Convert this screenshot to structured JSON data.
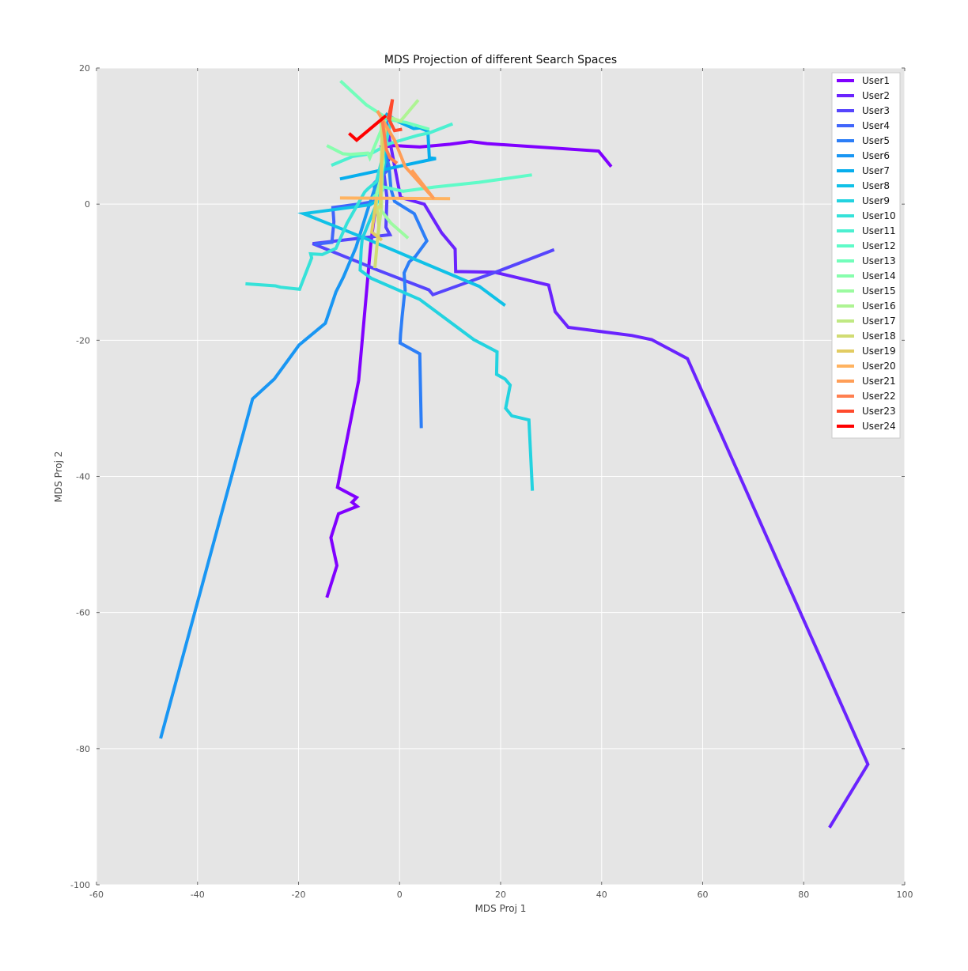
{
  "chart_data": {
    "type": "line",
    "title": "MDS Projection of different Search Spaces",
    "xlabel": "MDS Proj 1",
    "ylabel": "MDS Proj 2",
    "xlim": [
      -60,
      100
    ],
    "ylim": [
      -100,
      20
    ],
    "xticks": [
      -60,
      -40,
      -20,
      0,
      20,
      40,
      60,
      80,
      100
    ],
    "yticks": [
      20,
      0,
      -20,
      -40,
      -60,
      -80,
      -100
    ],
    "grid": true,
    "background": "#e5e5e5",
    "legend_position": "top-right",
    "series": [
      {
        "name": "User1",
        "color": "#8000ff",
        "points": [
          [
            -14.4,
            -57.8
          ],
          [
            -12.4,
            -53.1
          ],
          [
            -13.6,
            -49.0
          ],
          [
            -12.1,
            -45.5
          ],
          [
            -8.4,
            -44.4
          ],
          [
            -9.4,
            -43.8
          ],
          [
            -8.5,
            -43.1
          ],
          [
            -12.3,
            -41.6
          ],
          [
            -8.1,
            -25.9
          ],
          [
            -5.7,
            -5.9
          ],
          [
            -4.1,
            3.5
          ],
          [
            -2.0,
            6.8
          ],
          [
            -3.5,
            8.4
          ],
          [
            -1.0,
            8.6
          ],
          [
            4.0,
            8.4
          ],
          [
            10.0,
            8.8
          ],
          [
            14.0,
            9.2
          ],
          [
            17.3,
            8.9
          ],
          [
            39.4,
            7.8
          ],
          [
            41.9,
            5.5
          ]
        ]
      },
      {
        "name": "User2",
        "color": "#6a23fe",
        "points": [
          [
            -2.9,
            13.1
          ],
          [
            0.2,
            1.0
          ],
          [
            4.9,
            0.0
          ],
          [
            8.3,
            -4.2
          ],
          [
            11.0,
            -6.6
          ],
          [
            11.1,
            -9.9
          ],
          [
            18.8,
            -10.0
          ],
          [
            29.5,
            -11.9
          ],
          [
            30.8,
            -15.8
          ],
          [
            33.4,
            -18.1
          ],
          [
            46.0,
            -19.3
          ],
          [
            49.9,
            -19.9
          ],
          [
            57.0,
            -22.7
          ],
          [
            92.7,
            -82.3
          ],
          [
            85.1,
            -91.6
          ]
        ]
      },
      {
        "name": "User3",
        "color": "#5645fd",
        "points": [
          [
            -3.1,
            12.7
          ],
          [
            -3.1,
            4.6
          ],
          [
            -2.5,
            1.0
          ],
          [
            -2.7,
            -3.4
          ],
          [
            -1.9,
            -4.5
          ],
          [
            -17.2,
            -5.8
          ],
          [
            -8.2,
            -8.5
          ],
          [
            -4.3,
            -9.7
          ],
          [
            5.8,
            -12.6
          ],
          [
            6.6,
            -13.3
          ],
          [
            19.0,
            -10.0
          ],
          [
            30.6,
            -6.7
          ]
        ]
      },
      {
        "name": "User4",
        "color": "#4065fb",
        "points": [
          [
            -2.8,
            13.0
          ],
          [
            -2.6,
            4.8
          ],
          [
            -5.0,
            3.1
          ],
          [
            -4.9,
            0.4
          ],
          [
            -7.3,
            0.1
          ],
          [
            -13.2,
            -0.5
          ],
          [
            -13.0,
            -2.6
          ],
          [
            -13.4,
            -5.6
          ],
          [
            -16.9,
            -5.9
          ]
        ]
      },
      {
        "name": "User5",
        "color": "#2c7ef7",
        "points": [
          [
            -2.4,
            13.2
          ],
          [
            -3.1,
            8.4
          ],
          [
            -2.1,
            5.6
          ],
          [
            -1.7,
            2.2
          ],
          [
            -1.0,
            0.4
          ],
          [
            2.9,
            -1.4
          ],
          [
            5.4,
            -5.4
          ],
          [
            3.1,
            -7.7
          ],
          [
            1.9,
            -8.5
          ],
          [
            0.9,
            -10.1
          ],
          [
            1.1,
            -12.7
          ],
          [
            1.0,
            -13.1
          ],
          [
            0.5,
            -16.6
          ],
          [
            0.2,
            -19.1
          ],
          [
            0.1,
            -20.4
          ],
          [
            4.0,
            -22.0
          ],
          [
            4.3,
            -32.9
          ]
        ]
      },
      {
        "name": "User6",
        "color": "#1996f3",
        "points": [
          [
            -2.9,
            13.0
          ],
          [
            -2.9,
            6.8
          ],
          [
            -4.2,
            3.9
          ],
          [
            -6.4,
            -1.0
          ],
          [
            -8.6,
            -6.3
          ],
          [
            -11.1,
            -10.7
          ],
          [
            -12.6,
            -12.9
          ],
          [
            -14.7,
            -17.5
          ],
          [
            -19.9,
            -20.7
          ],
          [
            -24.8,
            -25.7
          ],
          [
            -29.1,
            -28.6
          ],
          [
            -47.3,
            -78.5
          ]
        ]
      },
      {
        "name": "User7",
        "color": "#06aeed",
        "points": [
          [
            -2.8,
            13.3
          ],
          [
            -0.2,
            12.1
          ],
          [
            2.8,
            11.1
          ],
          [
            4.1,
            11.2
          ],
          [
            5.6,
            10.7
          ],
          [
            5.9,
            6.8
          ],
          [
            7.2,
            6.7
          ],
          [
            -11.8,
            3.7
          ]
        ]
      },
      {
        "name": "User8",
        "color": "#10c1e7",
        "points": [
          [
            -2.7,
            13.0
          ],
          [
            -3.0,
            11.1
          ],
          [
            -2.9,
            6.1
          ],
          [
            -3.4,
            4.3
          ],
          [
            -3.8,
            2.1
          ],
          [
            -4.0,
            0.8
          ],
          [
            -5.8,
            -0.1
          ],
          [
            -19.0,
            -1.4
          ],
          [
            -6.9,
            -5.0
          ],
          [
            15.8,
            -12.1
          ],
          [
            20.9,
            -14.9
          ]
        ]
      },
      {
        "name": "User9",
        "color": "#23d3e0",
        "points": [
          [
            -2.9,
            12.8
          ],
          [
            -3.4,
            6.1
          ],
          [
            -3.4,
            2.1
          ],
          [
            -6.3,
            -3.1
          ],
          [
            -7.4,
            -5.1
          ],
          [
            -7.6,
            -6.7
          ],
          [
            -7.8,
            -9.7
          ],
          [
            -5.6,
            -10.9
          ],
          [
            4.0,
            -14.0
          ],
          [
            14.7,
            -19.9
          ],
          [
            19.3,
            -21.7
          ],
          [
            19.2,
            -25.0
          ],
          [
            20.9,
            -25.7
          ],
          [
            21.9,
            -26.6
          ],
          [
            21.0,
            -30.0
          ],
          [
            22.2,
            -31.1
          ],
          [
            25.6,
            -31.7
          ],
          [
            26.3,
            -42.1
          ]
        ]
      },
      {
        "name": "User10",
        "color": "#36e2d9",
        "points": [
          [
            -30.5,
            -11.7
          ],
          [
            -24.6,
            -12.0
          ],
          [
            -23.6,
            -12.2
          ],
          [
            -19.8,
            -12.5
          ],
          [
            -17.4,
            -7.9
          ],
          [
            -17.6,
            -7.3
          ],
          [
            -15.3,
            -7.4
          ],
          [
            -12.6,
            -6.5
          ],
          [
            -10.4,
            -2.8
          ],
          [
            -6.9,
            1.8
          ],
          [
            -6.2,
            2.3
          ],
          [
            -4.6,
            3.3
          ],
          [
            -2.6,
            9.2
          ],
          [
            -1.6,
            12.8
          ]
        ]
      },
      {
        "name": "User11",
        "color": "#4cf0d1",
        "points": [
          [
            -13.5,
            5.7
          ],
          [
            -9.3,
            7.0
          ],
          [
            -5.7,
            7.4
          ],
          [
            -2.0,
            8.9
          ],
          [
            3.6,
            10.1
          ],
          [
            6.0,
            10.5
          ],
          [
            10.5,
            11.8
          ]
        ]
      },
      {
        "name": "User12",
        "color": "#5ffbc8",
        "points": [
          [
            -5.2,
            1.0
          ],
          [
            -3.1,
            2.5
          ],
          [
            0.7,
            1.9
          ],
          [
            6.8,
            2.5
          ],
          [
            15.7,
            3.2
          ],
          [
            26.2,
            4.3
          ]
        ]
      },
      {
        "name": "User13",
        "color": "#72febb",
        "points": [
          [
            -11.7,
            18.1
          ],
          [
            -6.6,
            14.6
          ],
          [
            -2.0,
            12.4
          ],
          [
            1.3,
            12.0
          ],
          [
            5.9,
            11.0
          ]
        ]
      },
      {
        "name": "User14",
        "color": "#87fead",
        "points": [
          [
            -2.8,
            12.4
          ],
          [
            -5.9,
            6.8
          ],
          [
            -6.3,
            7.5
          ],
          [
            -9.7,
            7.3
          ],
          [
            -11.2,
            7.4
          ],
          [
            -14.4,
            8.6
          ]
        ]
      },
      {
        "name": "User15",
        "color": "#9bfba0",
        "points": [
          [
            -3.7,
            12.1
          ],
          [
            -3.2,
            6.1
          ],
          [
            -3.9,
            3.2
          ],
          [
            -4.5,
            1.7
          ],
          [
            -4.6,
            0.0
          ],
          [
            -1.7,
            -2.8
          ],
          [
            1.7,
            -5.0
          ]
        ]
      },
      {
        "name": "User16",
        "color": "#aef493",
        "points": [
          [
            -2.1,
            12.8
          ],
          [
            0.2,
            12.2
          ],
          [
            3.7,
            15.3
          ]
        ]
      },
      {
        "name": "User17",
        "color": "#c0e983",
        "points": [
          [
            -3.1,
            12.4
          ],
          [
            -3.6,
            6.4
          ],
          [
            -3.5,
            3.5
          ],
          [
            -3.6,
            1.5
          ],
          [
            -3.6,
            -0.4
          ],
          [
            -4.1,
            -3.5
          ],
          [
            -4.3,
            -5.0
          ]
        ]
      },
      {
        "name": "User18",
        "color": "#d1dc73",
        "points": [
          [
            -3.4,
            12.6
          ],
          [
            -3.8,
            -0.4
          ],
          [
            -4.5,
            -0.5
          ],
          [
            -4.1,
            -3.1
          ],
          [
            -4.9,
            -9.4
          ]
        ]
      },
      {
        "name": "User19",
        "color": "#e2cc62",
        "points": [
          [
            -2.7,
            11.7
          ],
          [
            -3.6,
            5.8
          ],
          [
            -3.8,
            0.8
          ],
          [
            -4.6,
            0.8
          ],
          [
            -5.5,
            -4.1
          ],
          [
            -3.5,
            -5.3
          ]
        ]
      },
      {
        "name": "User20",
        "color": "#ffb360",
        "points": [
          [
            -11.8,
            0.9
          ],
          [
            10.0,
            0.8
          ]
        ]
      },
      {
        "name": "User21",
        "color": "#ff9e57",
        "points": [
          [
            -4.4,
            13.7
          ],
          [
            -1.0,
            9.4
          ],
          [
            1.1,
            5.5
          ],
          [
            6.8,
            0.8
          ],
          [
            2.4,
            5.0
          ]
        ]
      },
      {
        "name": "User22",
        "color": "#ff7f50",
        "points": [
          [
            -3.4,
            12.2
          ],
          [
            -2.6,
            8.0
          ],
          [
            -1.9,
            6.8
          ],
          [
            -0.5,
            6.0
          ]
        ]
      },
      {
        "name": "User23",
        "color": "#ff4a2c",
        "points": [
          [
            -2.3,
            12.4
          ],
          [
            -1.4,
            15.4
          ],
          [
            -2.0,
            12.3
          ],
          [
            -1.0,
            10.8
          ],
          [
            0.5,
            11.0
          ]
        ]
      },
      {
        "name": "User24",
        "color": "#ff0000",
        "points": [
          [
            -10.0,
            10.4
          ],
          [
            -8.5,
            9.4
          ],
          [
            -2.7,
            13.0
          ]
        ]
      }
    ]
  }
}
